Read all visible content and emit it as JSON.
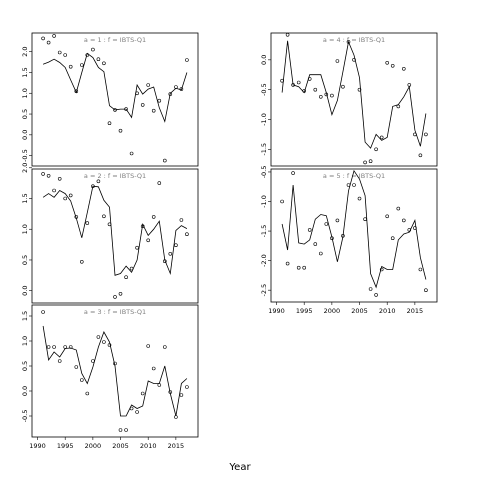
{
  "chart_data": {
    "type": "scatter",
    "xlabel": "Year",
    "xlim": [
      1989,
      2019
    ],
    "x_ticks": [
      1990,
      1995,
      2000,
      2005,
      2010,
      2015
    ],
    "panels": [
      {
        "label": "a = 1  :  f = IBTS-Q1",
        "ylim": [
          -0.75,
          2.45
        ],
        "y_ticks": [
          -0.5,
          0.0,
          0.5,
          1.0,
          1.5,
          2.0
        ],
        "y_tick_labels": [
          "-0.5",
          "0.0",
          "0.5",
          "1.0",
          "1.5",
          "2.0"
        ],
        "points": [
          [
            1991,
            2.32
          ],
          [
            1992,
            2.22
          ],
          [
            1993,
            2.38
          ],
          [
            1994,
            1.98
          ],
          [
            1995,
            1.92
          ],
          [
            1996,
            1.64
          ],
          [
            1997,
            1.05
          ],
          [
            1998,
            1.68
          ],
          [
            1999,
            1.92
          ],
          [
            2000,
            2.05
          ],
          [
            2001,
            1.82
          ],
          [
            2002,
            1.72
          ],
          [
            2003,
            0.28
          ],
          [
            2004,
            0.6
          ],
          [
            2005,
            0.1
          ],
          [
            2006,
            0.62
          ],
          [
            2007,
            -0.45
          ],
          [
            2008,
            1.0
          ],
          [
            2009,
            0.72
          ],
          [
            2010,
            1.2
          ],
          [
            2011,
            0.58
          ],
          [
            2012,
            0.82
          ],
          [
            2013,
            -0.62
          ],
          [
            2014,
            0.98
          ],
          [
            2015,
            1.15
          ],
          [
            2016,
            1.1
          ],
          [
            2017,
            1.8
          ]
        ],
        "fit": [
          [
            1991,
            1.7
          ],
          [
            1992,
            1.75
          ],
          [
            1993,
            1.82
          ],
          [
            1994,
            1.74
          ],
          [
            1995,
            1.62
          ],
          [
            1996,
            1.32
          ],
          [
            1997,
            1.02
          ],
          [
            1998,
            1.5
          ],
          [
            1999,
            1.96
          ],
          [
            2000,
            1.86
          ],
          [
            2001,
            1.62
          ],
          [
            2002,
            1.52
          ],
          [
            2003,
            0.7
          ],
          [
            2004,
            0.6
          ],
          [
            2005,
            0.62
          ],
          [
            2006,
            0.62
          ],
          [
            2007,
            0.42
          ],
          [
            2008,
            1.2
          ],
          [
            2009,
            0.98
          ],
          [
            2010,
            1.1
          ],
          [
            2011,
            1.15
          ],
          [
            2012,
            0.65
          ],
          [
            2013,
            0.32
          ],
          [
            2014,
            1.0
          ],
          [
            2015,
            1.12
          ],
          [
            2016,
            1.08
          ],
          [
            2017,
            1.5
          ]
        ]
      },
      {
        "label": "a = 2  :  f = IBTS-Q1",
        "ylim": [
          -0.2,
          1.98
        ],
        "y_ticks": [
          0.0,
          0.5,
          1.0,
          1.5,
          2.0
        ],
        "y_tick_labels": [
          "0.0",
          "0.5",
          "1.0",
          "1.5",
          "2.0"
        ],
        "points": [
          [
            1991,
            1.9
          ],
          [
            1992,
            1.87
          ],
          [
            1993,
            1.63
          ],
          [
            1994,
            1.82
          ],
          [
            1995,
            1.5
          ],
          [
            1996,
            1.55
          ],
          [
            1997,
            1.2
          ],
          [
            1998,
            0.47
          ],
          [
            1999,
            1.1
          ],
          [
            2000,
            1.7
          ],
          [
            2001,
            1.78
          ],
          [
            2002,
            1.21
          ],
          [
            2003,
            1.08
          ],
          [
            2004,
            -0.1
          ],
          [
            2005,
            -0.05
          ],
          [
            2006,
            0.22
          ],
          [
            2007,
            0.36
          ],
          [
            2008,
            0.7
          ],
          [
            2009,
            1.05
          ],
          [
            2010,
            0.82
          ],
          [
            2011,
            1.2
          ],
          [
            2012,
            1.75
          ],
          [
            2013,
            0.48
          ],
          [
            2014,
            0.6
          ],
          [
            2015,
            0.74
          ],
          [
            2016,
            1.15
          ],
          [
            2017,
            0.92
          ]
        ],
        "fit": [
          [
            1991,
            1.52
          ],
          [
            1992,
            1.58
          ],
          [
            1993,
            1.52
          ],
          [
            1994,
            1.63
          ],
          [
            1995,
            1.58
          ],
          [
            1996,
            1.46
          ],
          [
            1997,
            1.18
          ],
          [
            1998,
            0.86
          ],
          [
            1999,
            1.27
          ],
          [
            2000,
            1.7
          ],
          [
            2001,
            1.69
          ],
          [
            2002,
            1.47
          ],
          [
            2003,
            1.36
          ],
          [
            2004,
            0.25
          ],
          [
            2005,
            0.28
          ],
          [
            2006,
            0.4
          ],
          [
            2007,
            0.3
          ],
          [
            2008,
            0.5
          ],
          [
            2009,
            1.08
          ],
          [
            2010,
            0.9
          ],
          [
            2011,
            1.0
          ],
          [
            2012,
            1.13
          ],
          [
            2013,
            0.5
          ],
          [
            2014,
            0.28
          ],
          [
            2015,
            0.98
          ],
          [
            2016,
            1.06
          ],
          [
            2017,
            1.01
          ]
        ]
      },
      {
        "label": "a = 3  :  f = IBTS-Q1",
        "ylim": [
          -0.92,
          1.72
        ],
        "y_ticks": [
          -0.5,
          0.0,
          0.5,
          1.0,
          1.5
        ],
        "y_tick_labels": [
          "-0.5",
          "0.0",
          "0.5",
          "1.0",
          "1.5"
        ],
        "points": [
          [
            1991,
            1.58
          ],
          [
            1992,
            0.88
          ],
          [
            1993,
            0.88
          ],
          [
            1994,
            0.6
          ],
          [
            1995,
            0.88
          ],
          [
            1996,
            0.88
          ],
          [
            1997,
            0.48
          ],
          [
            1998,
            0.22
          ],
          [
            1999,
            -0.05
          ],
          [
            2000,
            0.6
          ],
          [
            2001,
            1.08
          ],
          [
            2002,
            0.98
          ],
          [
            2003,
            0.92
          ],
          [
            2004,
            0.55
          ],
          [
            2005,
            -0.78
          ],
          [
            2006,
            -0.78
          ],
          [
            2007,
            -0.35
          ],
          [
            2008,
            -0.42
          ],
          [
            2009,
            -0.05
          ],
          [
            2010,
            0.9
          ],
          [
            2011,
            0.45
          ],
          [
            2012,
            0.12
          ],
          [
            2013,
            0.88
          ],
          [
            2014,
            -0.02
          ],
          [
            2015,
            -0.52
          ],
          [
            2016,
            -0.08
          ],
          [
            2017,
            0.08
          ]
        ],
        "fit": [
          [
            1991,
            1.3
          ],
          [
            1992,
            0.62
          ],
          [
            1993,
            0.78
          ],
          [
            1994,
            0.68
          ],
          [
            1995,
            0.85
          ],
          [
            1996,
            0.86
          ],
          [
            1997,
            0.82
          ],
          [
            1998,
            0.35
          ],
          [
            1999,
            0.15
          ],
          [
            2000,
            0.48
          ],
          [
            2001,
            0.88
          ],
          [
            2002,
            1.18
          ],
          [
            2003,
            0.98
          ],
          [
            2004,
            0.5
          ],
          [
            2005,
            -0.5
          ],
          [
            2006,
            -0.5
          ],
          [
            2007,
            -0.28
          ],
          [
            2008,
            -0.35
          ],
          [
            2009,
            -0.3
          ],
          [
            2010,
            0.2
          ],
          [
            2011,
            0.15
          ],
          [
            2012,
            0.15
          ],
          [
            2013,
            0.5
          ],
          [
            2014,
            -0.05
          ],
          [
            2015,
            -0.5
          ],
          [
            2016,
            0.15
          ],
          [
            2017,
            0.25
          ]
        ]
      },
      {
        "label": "a = 4  :  f = IBTS-Q1",
        "ylim": [
          -1.78,
          0.45
        ],
        "y_ticks": [
          -1.5,
          -1.0,
          -0.5,
          0.0
        ],
        "y_tick_labels": [
          "-1.5",
          "-1.0",
          "-0.5",
          "0.0"
        ],
        "points": [
          [
            1991,
            -0.35
          ],
          [
            1992,
            0.42
          ],
          [
            1993,
            -0.42
          ],
          [
            1994,
            -0.38
          ],
          [
            1995,
            -0.52
          ],
          [
            1996,
            -0.32
          ],
          [
            1997,
            -0.5
          ],
          [
            1998,
            -0.62
          ],
          [
            1999,
            -0.58
          ],
          [
            2000,
            -0.6
          ],
          [
            2001,
            -0.02
          ],
          [
            2002,
            -0.45
          ],
          [
            2003,
            0.3
          ],
          [
            2004,
            0.0
          ],
          [
            2005,
            -0.5
          ],
          [
            2006,
            -1.72
          ],
          [
            2007,
            -1.7
          ],
          [
            2008,
            -1.5
          ],
          [
            2009,
            -1.3
          ],
          [
            2010,
            -0.05
          ],
          [
            2011,
            -0.1
          ],
          [
            2012,
            -0.78
          ],
          [
            2013,
            -0.15
          ],
          [
            2014,
            -0.42
          ],
          [
            2015,
            -1.25
          ],
          [
            2016,
            -1.6
          ],
          [
            2017,
            -1.25
          ]
        ],
        "fit": [
          [
            1991,
            -0.55
          ],
          [
            1992,
            0.32
          ],
          [
            1993,
            -0.42
          ],
          [
            1994,
            -0.45
          ],
          [
            1995,
            -0.55
          ],
          [
            1996,
            -0.25
          ],
          [
            1997,
            -0.25
          ],
          [
            1998,
            -0.25
          ],
          [
            1999,
            -0.55
          ],
          [
            2000,
            -0.92
          ],
          [
            2001,
            -0.68
          ],
          [
            2002,
            -0.2
          ],
          [
            2003,
            0.3
          ],
          [
            2004,
            0.08
          ],
          [
            2005,
            -0.3
          ],
          [
            2006,
            -1.38
          ],
          [
            2007,
            -1.48
          ],
          [
            2008,
            -1.25
          ],
          [
            2009,
            -1.35
          ],
          [
            2010,
            -1.3
          ],
          [
            2011,
            -0.78
          ],
          [
            2012,
            -0.75
          ],
          [
            2013,
            -0.62
          ],
          [
            2014,
            -0.45
          ],
          [
            2015,
            -1.18
          ],
          [
            2016,
            -1.45
          ],
          [
            2017,
            -0.9
          ]
        ]
      },
      {
        "label": "a = 5  :  f = IBTS-Q1",
        "ylim": [
          -2.7,
          -0.45
        ],
        "y_ticks": [
          -2.5,
          -2.0,
          -1.5,
          -1.0,
          -0.5
        ],
        "y_tick_labels": [
          "-2.5",
          "-2.0",
          "-1.5",
          "-1.0",
          "-0.5"
        ],
        "points": [
          [
            1991,
            -1.0
          ],
          [
            1992,
            -2.05
          ],
          [
            1993,
            -0.52
          ],
          [
            1994,
            -2.12
          ],
          [
            1995,
            -2.12
          ],
          [
            1996,
            -1.48
          ],
          [
            1997,
            -1.72
          ],
          [
            1998,
            -1.88
          ],
          [
            1999,
            -1.38
          ],
          [
            2000,
            -1.62
          ],
          [
            2001,
            -1.32
          ],
          [
            2002,
            -1.58
          ],
          [
            2003,
            -0.72
          ],
          [
            2004,
            -0.72
          ],
          [
            2005,
            -0.95
          ],
          [
            2006,
            -1.3
          ],
          [
            2007,
            -2.48
          ],
          [
            2008,
            -2.58
          ],
          [
            2009,
            -2.15
          ],
          [
            2010,
            -1.25
          ],
          [
            2011,
            -1.62
          ],
          [
            2012,
            -1.12
          ],
          [
            2013,
            -1.32
          ],
          [
            2014,
            -1.48
          ],
          [
            2015,
            -1.45
          ],
          [
            2016,
            -2.15
          ],
          [
            2017,
            -2.5
          ]
        ],
        "fit": [
          [
            1991,
            -1.38
          ],
          [
            1992,
            -1.82
          ],
          [
            1993,
            -0.72
          ],
          [
            1994,
            -1.7
          ],
          [
            1995,
            -1.72
          ],
          [
            1996,
            -1.65
          ],
          [
            1997,
            -1.3
          ],
          [
            1998,
            -1.22
          ],
          [
            1999,
            -1.24
          ],
          [
            2000,
            -1.6
          ],
          [
            2001,
            -2.02
          ],
          [
            2002,
            -1.6
          ],
          [
            2003,
            -0.82
          ],
          [
            2004,
            -0.48
          ],
          [
            2005,
            -0.62
          ],
          [
            2006,
            -0.9
          ],
          [
            2007,
            -2.22
          ],
          [
            2008,
            -2.45
          ],
          [
            2009,
            -2.1
          ],
          [
            2010,
            -2.15
          ],
          [
            2011,
            -2.15
          ],
          [
            2012,
            -1.65
          ],
          [
            2013,
            -1.55
          ],
          [
            2014,
            -1.52
          ],
          [
            2015,
            -1.32
          ],
          [
            2016,
            -1.95
          ],
          [
            2017,
            -2.32
          ]
        ]
      }
    ]
  }
}
